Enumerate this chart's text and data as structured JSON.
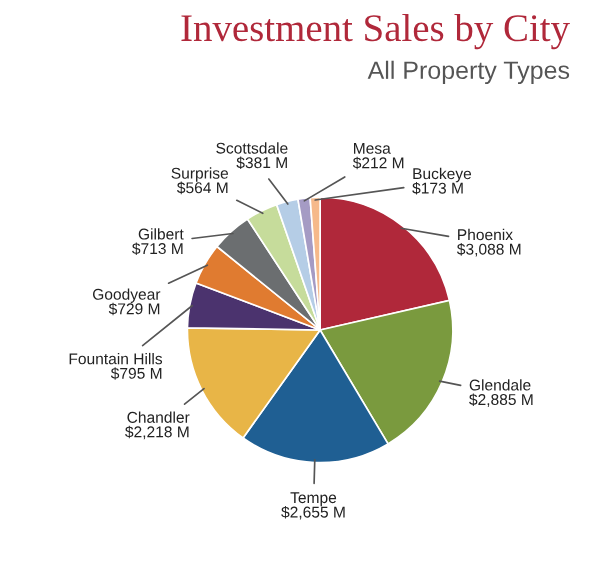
{
  "chart_data": {
    "type": "pie",
    "title": "Investment Sales by City",
    "subtitle": "All Property Types",
    "categories": [
      "Phoenix",
      "Glendale",
      "Tempe",
      "Chandler",
      "Fountain Hills",
      "Goodyear",
      "Gilbert",
      "Surprise",
      "Scottsdale",
      "Mesa",
      "Buckeye"
    ],
    "values": [
      3088,
      2885,
      2655,
      2218,
      795,
      729,
      713,
      564,
      381,
      212,
      173
    ],
    "value_labels": [
      "$3,088 M",
      "$2,885 M",
      "$2,655 M",
      "$2,218 M",
      "$795 M",
      "$729 M",
      "$713 M",
      "$564 M",
      "$381 M",
      "$212 M",
      "$173 M"
    ],
    "colors": [
      "#b0283a",
      "#7a9a3e",
      "#1f5f93",
      "#e8b547",
      "#4b336e",
      "#e07b30",
      "#6b6e70",
      "#c6dc9b",
      "#b5cde6",
      "#a59bc4",
      "#f6b98a"
    ]
  }
}
